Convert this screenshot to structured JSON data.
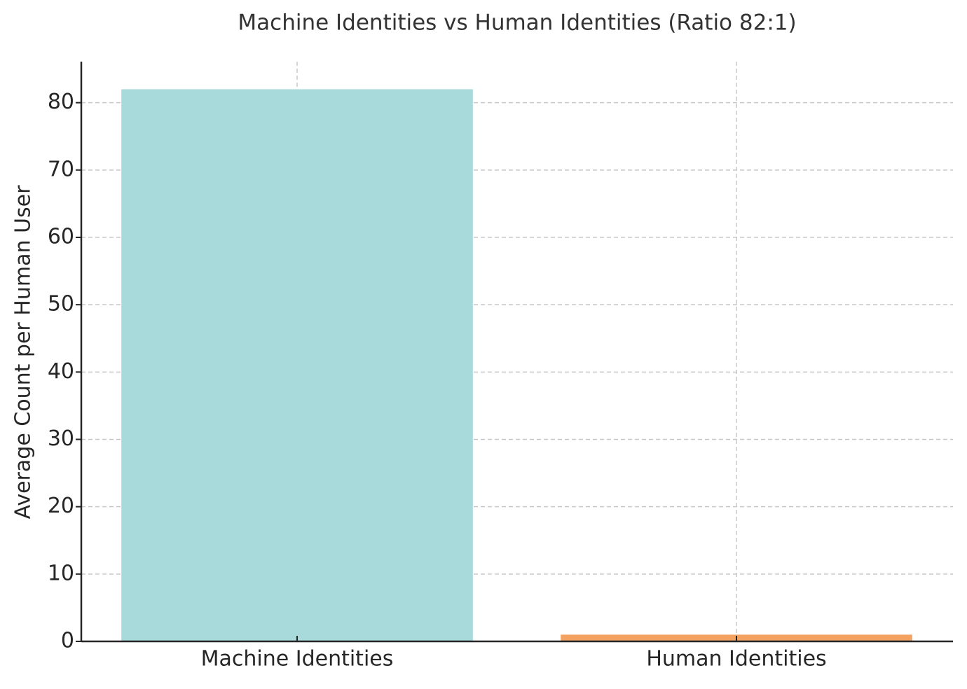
{
  "chart_data": {
    "type": "bar",
    "title": "Machine Identities vs Human Identities (Ratio 82:1)",
    "y_label": "Average Count per Human User",
    "categories": [
      "Machine Identities",
      "Human Identities"
    ],
    "values": [
      82,
      1
    ],
    "colors": [
      "#a8dadc",
      "#f4a261"
    ],
    "ylim": [
      0,
      86.1
    ],
    "yticks": [
      0,
      10,
      20,
      30,
      40,
      50,
      60,
      70,
      80
    ],
    "grid": true
  }
}
